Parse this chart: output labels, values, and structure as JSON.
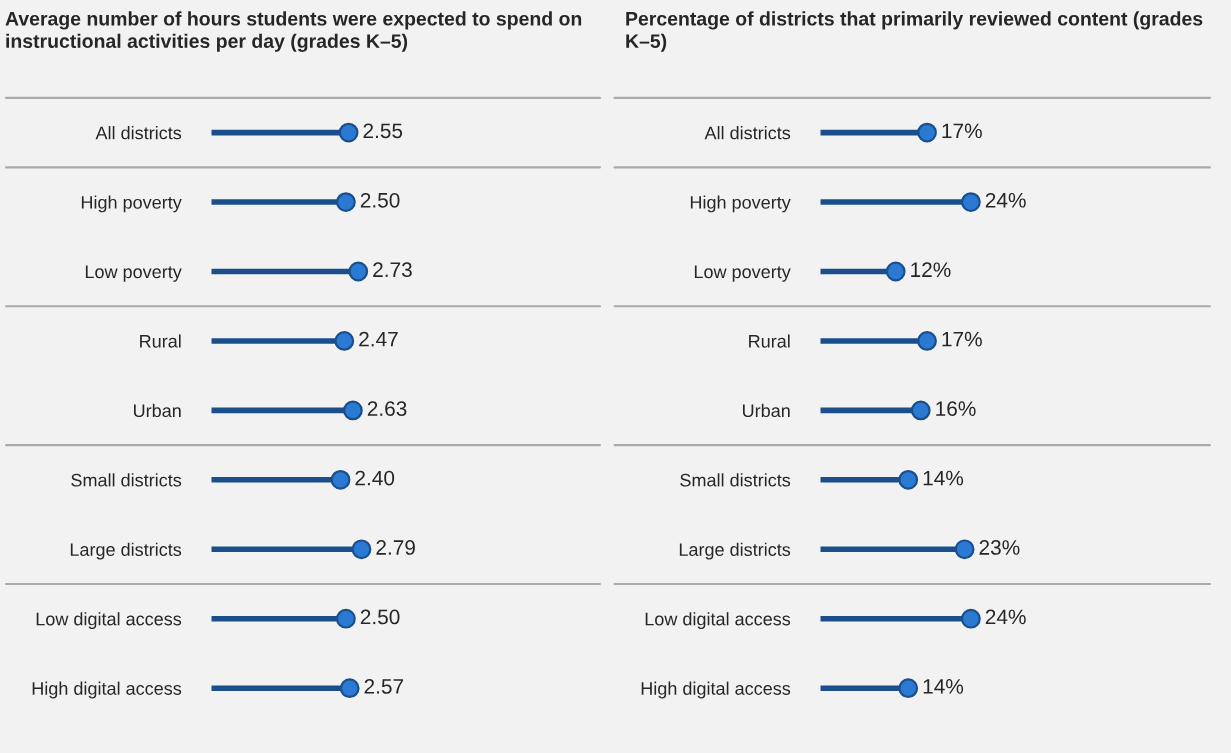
{
  "chart_data": [
    {
      "type": "lollipop",
      "orientation": "horizontal",
      "title": "Average number of hours students were expected to spend on instructional activities per day (grades K–5)",
      "categories": [
        "All districts",
        "High poverty",
        "Low poverty",
        "Rural",
        "Urban",
        "Small districts",
        "Large districts",
        "Low digital access",
        "High digital access"
      ],
      "series": [
        {
          "color": "#1a4f8c",
          "values": [
            2.55,
            2.5,
            2.73,
            2.47,
            2.63,
            2.4,
            2.79,
            2.5,
            2.57
          ],
          "value_labels": [
            "2.55",
            "2.50",
            "2.73",
            "2.47",
            "2.63",
            "2.40",
            "2.79",
            "2.50",
            "2.57"
          ]
        }
      ],
      "marker": "circle",
      "tick_labels": "y",
      "grid": "y"
    },
    {
      "type": "lollipop",
      "orientation": "horizontal",
      "title": "Percentage of districts that primarily reviewed content (grades K–5)",
      "categories": [
        "All districts",
        "High poverty",
        "Low poverty",
        "Rural",
        "Urban",
        "Small districts",
        "Large districts",
        "Low digital access",
        "High digital access"
      ],
      "series": [
        {
          "color": "#1a4f8c",
          "values": [
            17,
            24,
            12,
            17,
            16,
            14,
            23,
            24,
            14
          ],
          "value_labels": [
            "17%",
            "24%",
            "12%",
            "17%",
            "16%",
            "14%",
            "23%",
            "24%",
            "14%"
          ]
        }
      ],
      "marker": "circle",
      "tick_labels": "y",
      "grid": "y"
    }
  ]
}
